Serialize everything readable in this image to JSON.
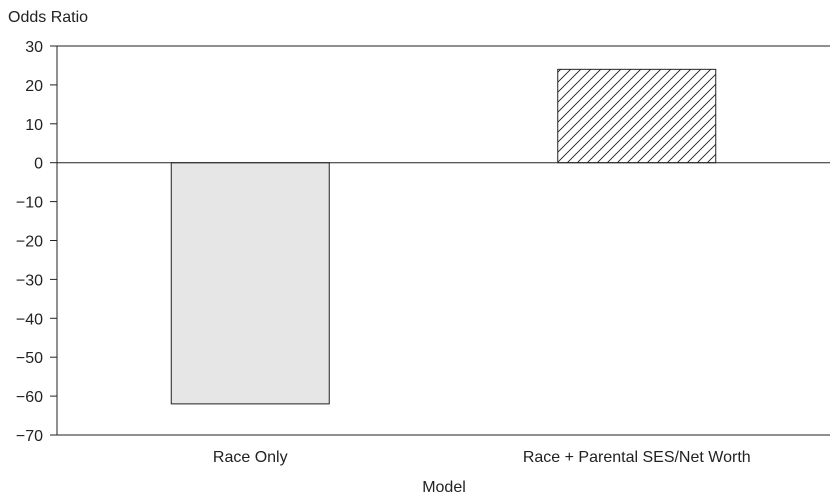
{
  "chart_data": {
    "type": "bar",
    "title": "",
    "ylabel": "Odds Ratio",
    "xlabel": "Model",
    "ylim": [
      -70,
      30
    ],
    "yticks": [
      30,
      20,
      10,
      0,
      -10,
      -20,
      -30,
      -40,
      -50,
      -60,
      -70
    ],
    "ytick_labels": [
      "30",
      "20",
      "10",
      "0",
      "−10",
      "−20",
      "−30",
      "−40",
      "−50",
      "−60",
      "−70"
    ],
    "categories": [
      "Race Only",
      "Race + Parental SES/Net Worth"
    ],
    "values": [
      -62,
      24
    ],
    "bar_styles": [
      {
        "fill": "#e6e6e6",
        "pattern": "solid"
      },
      {
        "fill": "#ffffff",
        "pattern": "diagonal-hatch"
      }
    ],
    "grid": false,
    "legend": "none",
    "colors": {
      "axis": "#222222",
      "text": "#222222",
      "bar_stroke": "#222222"
    }
  }
}
